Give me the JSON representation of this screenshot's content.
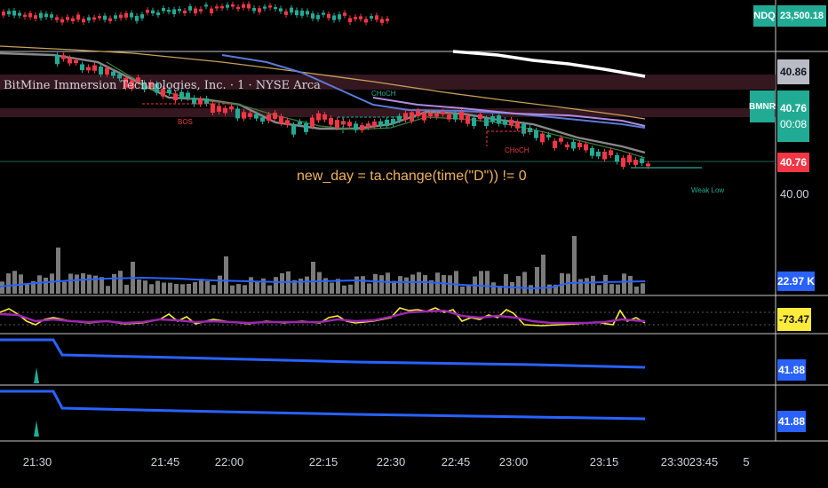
{
  "symbol_title": "BitMine Immersion Technologies, Inc. · 1 · NYSE Arca",
  "code_annotation": "new_day = ta.change(time(\"D\")) != 0",
  "structure_labels": {
    "bos": "BOS",
    "choch_left": "CHoCH",
    "choch_right": "CHoCH",
    "weak_low": "Weak Low"
  },
  "price_scale": {
    "ndq_symbol": "NDQ",
    "ndq_value": "23,500.18",
    "top_value": "40.86",
    "symbol": "BMNR",
    "last_price": "40.76",
    "countdown": "00:08",
    "last_price_red": "40.76",
    "level_40": "40.00"
  },
  "volume_scale": {
    "value": "22.97 K"
  },
  "oscillator_scale": {
    "value": "-73.47"
  },
  "indicator1_scale": {
    "value": "41.88"
  },
  "indicator2_scale": {
    "value": "41.88"
  },
  "time_axis": [
    "21:30",
    "21:45",
    "22:00",
    "22:15",
    "22:30",
    "22:45",
    "23:00",
    "23:15",
    "23:30",
    "23:45",
    "5"
  ],
  "colors": {
    "up": "#22ab94",
    "down": "#f23645",
    "volume": "#7a7a7a",
    "ma_blue": "#2962ff",
    "osc_yellow": "#ffeb3b",
    "osc_purple": "#9c27b0",
    "annotation": "#f0b35a"
  }
}
